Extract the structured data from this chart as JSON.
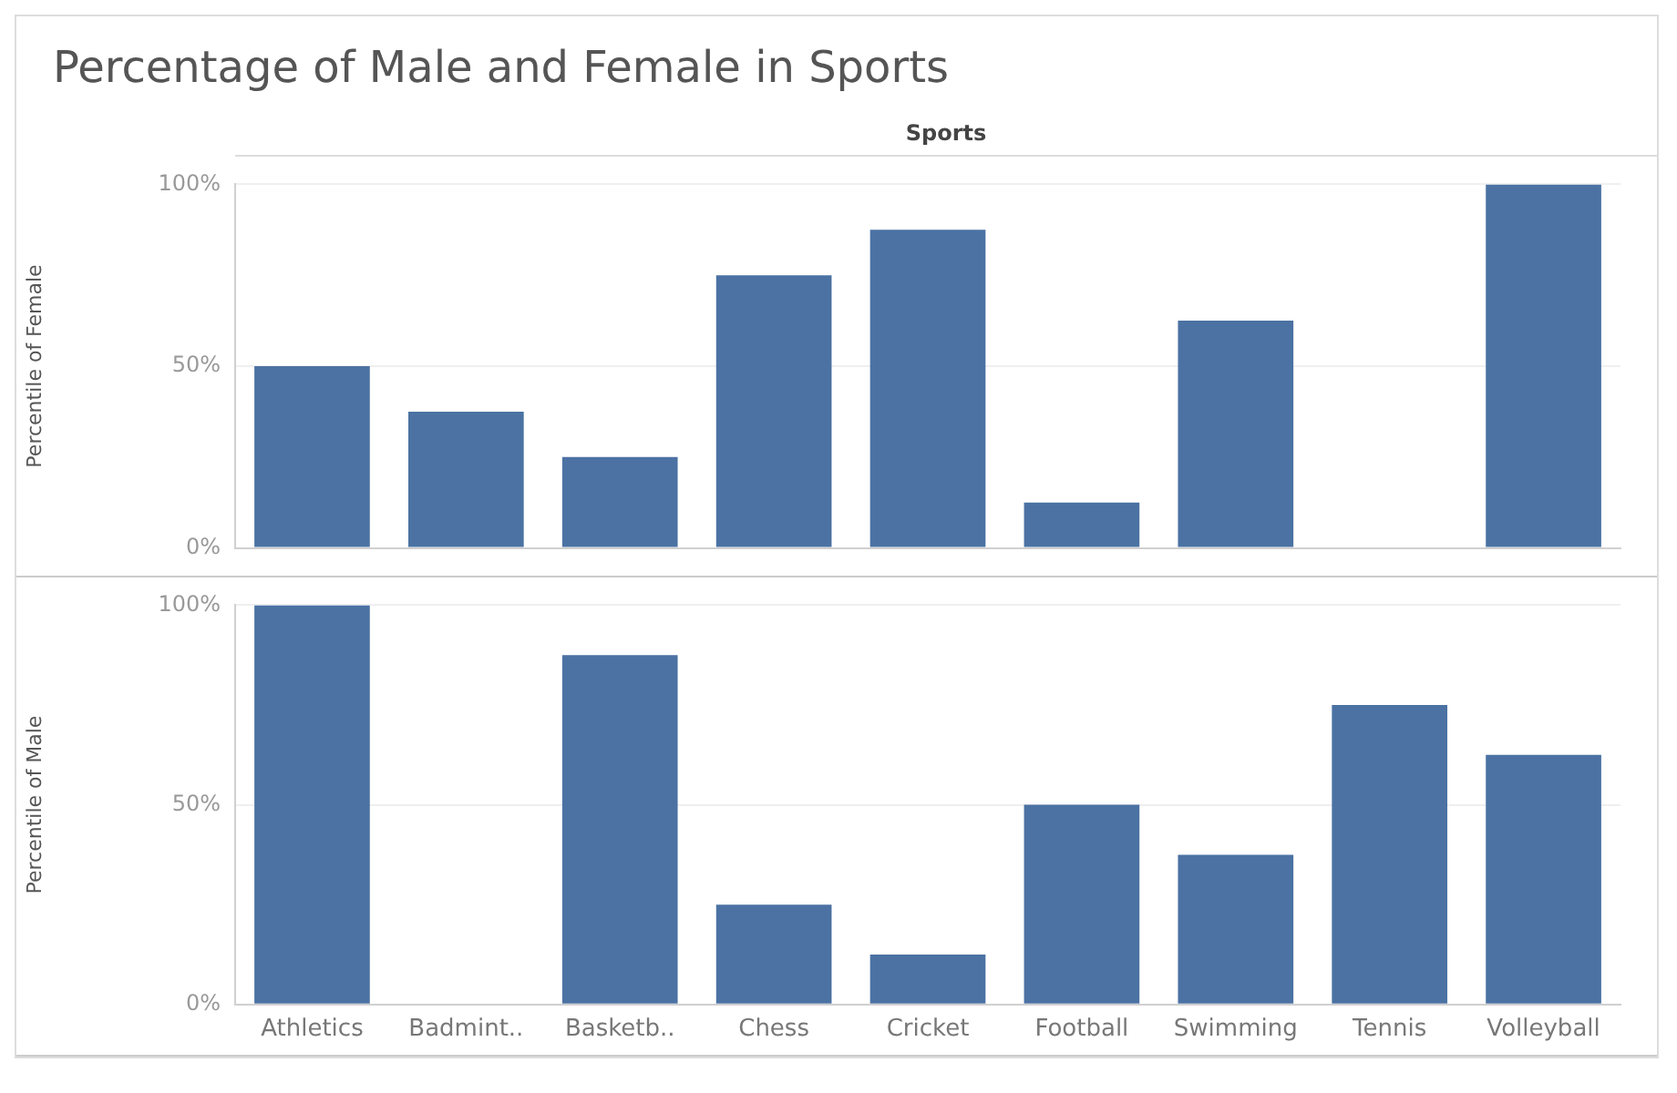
{
  "chart_data": [
    {
      "type": "bar",
      "title": "Percentage of Male and Female in Sports",
      "xlabel": "Sports",
      "ylabel": "Percentile of Female",
      "categories": [
        null,
        null,
        null,
        null,
        null,
        null,
        null,
        null,
        null
      ],
      "values": [
        50,
        37.5,
        25,
        75,
        87.5,
        12.5,
        62.5,
        0,
        100
      ],
      "color": "#4b72a3",
      "ylim": [
        0,
        100
      ],
      "yticks": [
        {
          "value": 0,
          "label": "0%"
        },
        {
          "value": 50,
          "label": "50%"
        },
        {
          "value": 100,
          "label": "100%"
        }
      ],
      "grid": "y",
      "tick_labels": "y"
    },
    {
      "type": "bar",
      "ylabel": "Percentile of Male",
      "categories": [
        "Athletics",
        "Badmint..",
        "Basketb..",
        "Chess",
        "Cricket",
        "Football",
        "Swimming",
        "Tennis",
        "Volleyball"
      ],
      "values": [
        100,
        0,
        87.5,
        25,
        12.5,
        50,
        37.5,
        75,
        62.5
      ],
      "color": "#4b72a3",
      "ylim": [
        0,
        100
      ],
      "yticks": [
        {
          "value": 0,
          "label": "0%"
        },
        {
          "value": 50,
          "label": "50%"
        },
        {
          "value": 100,
          "label": "100%"
        }
      ],
      "grid": "y"
    }
  ]
}
